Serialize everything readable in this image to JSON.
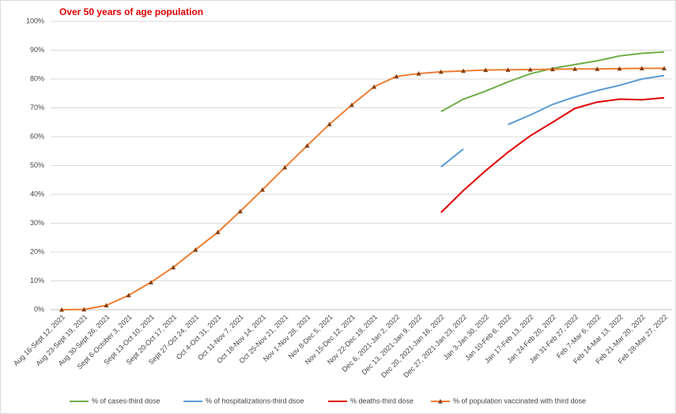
{
  "chart_data": {
    "type": "line",
    "title": "Over 50 years of age population",
    "categories": [
      "Aug 16-Sept 12, 2021",
      "Aug 23-Sept 19, 2021",
      "Aug 30-Sept 26, 2021",
      "Sept 6-October 3, 2021",
      "Sept 13-Oct 10, 2021",
      "Sept 20-Oct 17, 2021",
      "Sept 27-Oct 24, 2021",
      "Oct 4-Oct 31, 2021",
      "Oct 11-Nov 7, 2021",
      "Oct 18-Nov 14, 2021",
      "Oct 25-Nov 21, 2021",
      "Nov 1-Nov 28, 2021",
      "Nov 8-Dec 5, 2021",
      "Nov 15-Dec 12, 2021",
      "Nov 22-Dec 19, 2021",
      "Dec 6, 2021-Jan 2, 2022",
      "Dec 13, 2021-Jan 9, 2022",
      "Dec 20, 2021-Jan 16, 2022",
      "Dec 27, 2021-Jan 23, 2022",
      "Jan 3-Jan 30, 2022",
      "Jan 10-Feb 6, 2022",
      "Jan 17-Feb 13, 2022",
      "Jan 24-Feb 20, 2022",
      "Jan 31-Feb 27, 2022",
      "Feb 7-Mar 6, 2022",
      "Feb 14-Mar 13, 2022",
      "Feb 21-Mar 20, 2022",
      "Feb 28-Mar 27, 2022"
    ],
    "series": [
      {
        "name": "% of cases-third dose",
        "color": "#70ad47",
        "marker": false,
        "values": [
          null,
          null,
          null,
          null,
          null,
          null,
          null,
          null,
          null,
          null,
          null,
          null,
          null,
          null,
          null,
          null,
          null,
          68.7,
          73,
          75.8,
          79,
          81.8,
          83.7,
          85,
          86.3,
          88,
          88.9,
          89.4
        ]
      },
      {
        "name": "% of hospitalizations-third dsoe",
        "color": "#5b9bd5",
        "marker": false,
        "values": [
          null,
          null,
          null,
          null,
          null,
          null,
          null,
          null,
          null,
          null,
          null,
          null,
          null,
          null,
          null,
          null,
          null,
          49.5,
          55.7,
          null,
          64.2,
          67.5,
          71.2,
          73.8,
          76,
          77.8,
          80,
          81.2
        ]
      },
      {
        "name": "% deaths-third dose",
        "color": "#e00000",
        "marker": false,
        "values": [
          null,
          null,
          null,
          null,
          null,
          null,
          null,
          null,
          null,
          null,
          null,
          null,
          null,
          null,
          null,
          null,
          null,
          33.7,
          41.3,
          48.2,
          54.6,
          60.3,
          65,
          69.8,
          72,
          73,
          72.8,
          73.5
        ]
      },
      {
        "name": "% of population vaccinated with third dose",
        "color": "#ed7d31",
        "marker": true,
        "marker_color": "#843c0c",
        "values": [
          0,
          0.1,
          1.5,
          5,
          9.5,
          14.7,
          20.8,
          26.9,
          34.1,
          41.6,
          49.3,
          56.9,
          64.3,
          71,
          77.3,
          80.9,
          81.9,
          82.5,
          82.8,
          83.1,
          83.2,
          83.3,
          83.4,
          83.5,
          83.5,
          83.6,
          83.7,
          83.7
        ]
      }
    ],
    "ylim": [
      0,
      100
    ],
    "yticks": [
      {
        "value": 0,
        "label": "0%"
      },
      {
        "value": 10,
        "label": "10%"
      },
      {
        "value": 20,
        "label": "20%"
      },
      {
        "value": 30,
        "label": "30%"
      },
      {
        "value": 40,
        "label": "40%"
      },
      {
        "value": 50,
        "label": "50%"
      },
      {
        "value": 60,
        "label": "60%"
      },
      {
        "value": 70,
        "label": "70%"
      },
      {
        "value": 80,
        "label": "80%"
      },
      {
        "value": 90,
        "label": "90%"
      },
      {
        "value": 100,
        "label": "100%"
      }
    ],
    "grid": true,
    "legend": "bottom"
  }
}
